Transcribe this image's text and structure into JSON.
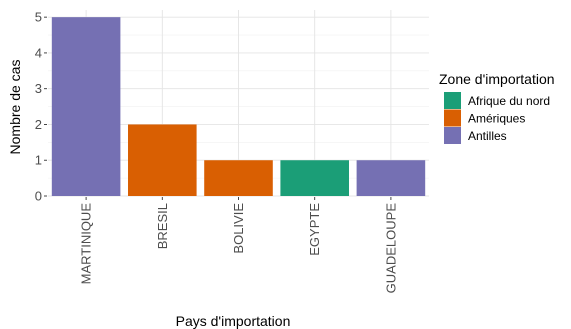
{
  "chart_data": {
    "type": "bar",
    "categories": [
      "MARTINIQUE",
      "BRESIL",
      "BOLIVIE",
      "EGYPTE",
      "GUADELOUPE"
    ],
    "values": [
      5,
      2,
      1,
      1,
      1
    ],
    "zones": [
      "Antilles",
      "Amériques",
      "Amériques",
      "Afrique du nord",
      "Antilles"
    ],
    "xlabel": "Pays d'importation",
    "ylabel": "Nombre de cas",
    "ylim": [
      0,
      5.2
    ],
    "yticks": [
      "0",
      "1",
      "2",
      "3",
      "4",
      "5"
    ],
    "grid": true,
    "legend": {
      "title": "Zone d'importation",
      "placement": "right",
      "entries": [
        {
          "name": "Afrique du nord",
          "color": "#1b9e77"
        },
        {
          "name": "Amériques",
          "color": "#d95f02"
        },
        {
          "name": "Antilles",
          "color": "#7570b3"
        }
      ]
    }
  }
}
